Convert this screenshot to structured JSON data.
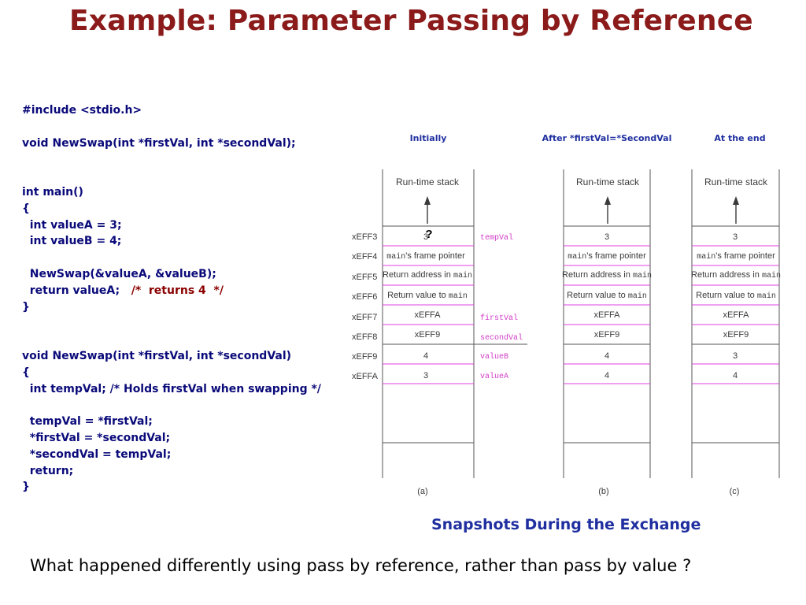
{
  "title": "Example: Parameter Passing by Reference",
  "code": {
    "l1": "#include <stdio.h>",
    "l2": "void NewSwap(int *firstVal, int *secondVal);",
    "l3": "int main()",
    "l4": "{",
    "l5": "  int valueA = 3;",
    "l6": "  int valueB = 4;",
    "l7": "  NewSwap(&valueA, &valueB);",
    "l8_code": "  return valueA;   ",
    "l8_comment": "/*  returns 4  */",
    "l9": "}",
    "l10": "void NewSwap(int *firstVal, int *secondVal)",
    "l11": "{",
    "l12": "  int tempVal; /* Holds firstVal when swapping */",
    "l13": "  tempVal = *firstVal;",
    "l14": "  *firstVal = *secondVal;",
    "l15": "  *secondVal = tempVal;",
    "l16": "  return;",
    "l17": "}"
  },
  "diagram": {
    "headings": [
      "Initially",
      "After *firstVal=*SecondVal",
      "At the end"
    ],
    "stack_label": "Run-time stack",
    "addresses": [
      "xEFF3",
      "xEFF4",
      "xEFF5",
      "xEFF6",
      "xEFF7",
      "xEFF8",
      "xEFF9",
      "xEFFA"
    ],
    "var_labels": [
      "tempVal",
      "firstVal",
      "secondVal",
      "valueB",
      "valueA"
    ],
    "frame_pointer_prefix": "main",
    "frame_pointer_suffix": "'s frame pointer",
    "return_address_prefix": "Return address in ",
    "return_value_prefix": "Return value to ",
    "main_word": "main",
    "col_a": {
      "r0": "3",
      "r4": "xEFFA",
      "r5": "xEFF9",
      "r6": "4",
      "r7": "3",
      "unknown_mark": "?"
    },
    "col_b": {
      "r0": "3",
      "r4": "xEFFA",
      "r5": "xEFF9",
      "r6": "4",
      "r7": "4"
    },
    "col_c": {
      "r0": "3",
      "r4": "xEFFA",
      "r5": "xEFF9",
      "r6": "3",
      "r7": "4"
    },
    "sublabels": [
      "(a)",
      "(b)",
      "(c)"
    ],
    "colors": {
      "text": "#3a3a3a",
      "divider": "#e040e0",
      "var_label": "#d23cc8",
      "border": "#555555"
    }
  },
  "caption": "Snapshots During the Exchange",
  "question": "What happened differently using pass by reference, rather than pass by value ?"
}
